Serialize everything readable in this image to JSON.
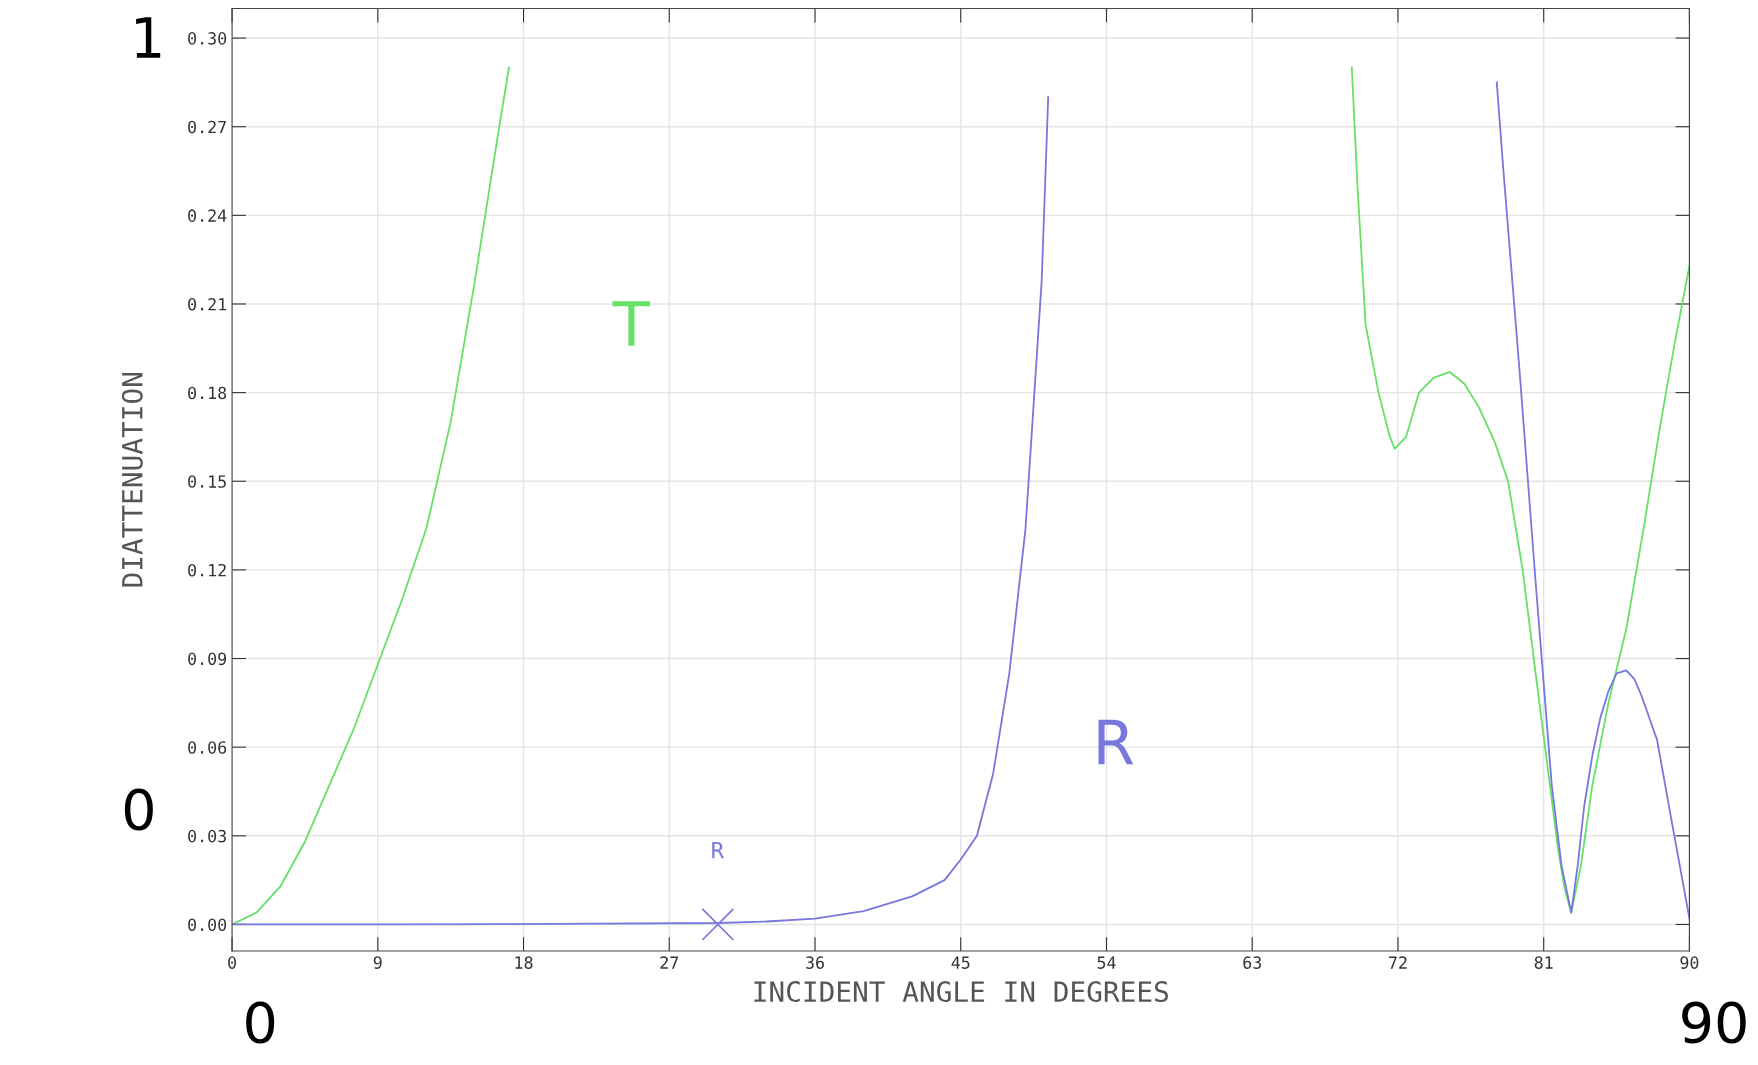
{
  "chart_data": {
    "type": "line",
    "xlabel": "INCIDENT ANGLE IN DEGREES",
    "ylabel": "DIATTENUATION",
    "xlim": [
      0,
      90
    ],
    "ylim": [
      -0.009,
      0.31
    ],
    "xticks": [
      0,
      9,
      18,
      27,
      36,
      45,
      54,
      63,
      72,
      81,
      90
    ],
    "yticks": [
      {
        "value": 0,
        "label": "0.00"
      },
      {
        "value": 0.03,
        "label": "0.03"
      },
      {
        "value": 0.06,
        "label": "0.06"
      },
      {
        "value": 0.09,
        "label": "0.09"
      },
      {
        "value": 0.12,
        "label": "0.12"
      },
      {
        "value": 0.15,
        "label": "0.15"
      },
      {
        "value": 0.18,
        "label": "0.18"
      },
      {
        "value": 0.21,
        "label": "0.21"
      },
      {
        "value": 0.24,
        "label": "0.24"
      },
      {
        "value": 0.27,
        "label": "0.27"
      },
      {
        "value": 0.3,
        "label": "0.30"
      }
    ],
    "grid": true,
    "legend": false,
    "series": [
      {
        "name": "T",
        "color": "#66e066",
        "x": [
          0,
          1.5,
          3,
          4.5,
          6,
          7.5,
          9,
          10.5,
          12,
          13.5,
          15,
          16.5,
          17.1,
          30,
          50,
          69.15,
          69.5,
          70,
          70.8,
          71.5,
          71.8,
          72.5,
          73.3,
          74.2,
          75.2,
          76.1,
          77,
          78,
          78.8,
          79.7,
          80.5,
          81.2,
          81.9,
          82.3,
          82.7,
          83.3,
          84,
          85,
          86.1,
          87.2,
          88.2,
          89.1,
          90
        ],
        "values": [
          0,
          0.004,
          0.013,
          0.028,
          0.047,
          0.066,
          0.088,
          0.11,
          0.134,
          0.17,
          0.218,
          0.27,
          0.29,
          null,
          null,
          0.29,
          0.25,
          0.203,
          0.18,
          0.165,
          0.161,
          0.165,
          0.18,
          0.185,
          0.187,
          0.183,
          0.175,
          0.163,
          0.15,
          0.12,
          0.085,
          0.055,
          0.025,
          0.012,
          0.004,
          0.02,
          0.047,
          0.075,
          0.1,
          0.135,
          0.169,
          0.197,
          0.223
        ]
      },
      {
        "name": "R",
        "color": "#7777dd",
        "x": [
          0,
          10,
          20,
          30,
          33,
          36,
          39,
          42,
          44,
          45,
          46,
          47,
          48,
          49,
          50,
          50.4,
          60,
          78.1,
          78.5,
          79.5,
          80.5,
          81.5,
          82.1,
          82.7,
          83.1,
          83.5,
          84,
          84.5,
          85,
          85.5,
          86.1,
          86.6,
          87,
          88,
          89,
          90
        ],
        "values": [
          0,
          0,
          0.0002,
          0.0005,
          0.001,
          0.002,
          0.0045,
          0.0095,
          0.015,
          0.022,
          0.03,
          0.051,
          0.085,
          0.134,
          0.218,
          0.28,
          null,
          0.285,
          0.256,
          0.188,
          0.116,
          0.047,
          0.02,
          0.004,
          0.02,
          0.04,
          0.057,
          0.07,
          0.079,
          0.085,
          0.086,
          0.083,
          0.078,
          0.0625,
          0.032,
          0.002
        ]
      },
      {
        "name": "R",
        "type": "scatter",
        "marker": "cross",
        "color": "#7777dd",
        "x": [
          30
        ],
        "values": [
          0
        ]
      }
    ],
    "annotations": [
      "1",
      "0",
      "0",
      "90"
    ]
  }
}
